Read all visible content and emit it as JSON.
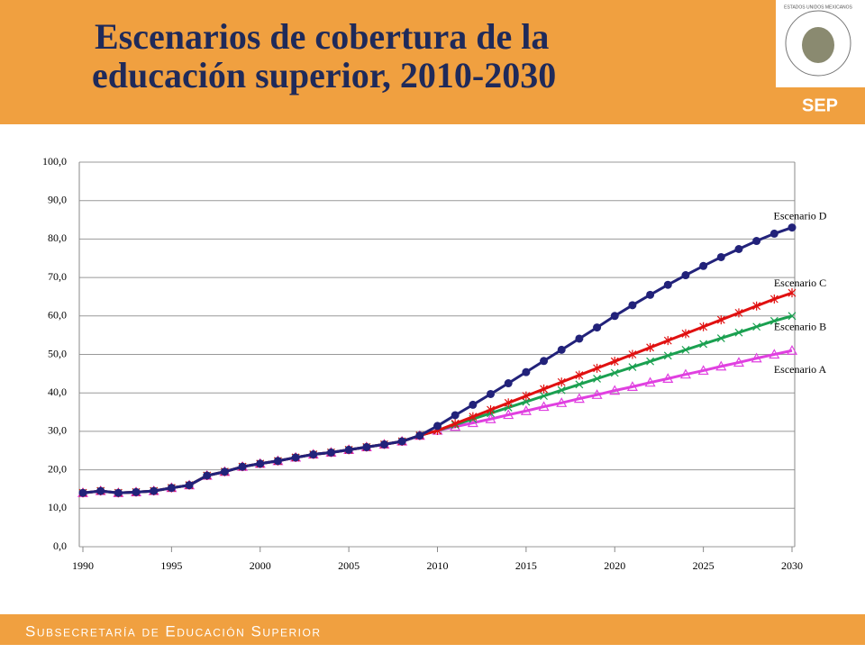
{
  "header": {
    "title": [
      "Escenarios de cobertura de la",
      "educación superior, 2010-2030"
    ]
  },
  "logo": {
    "emblem_text": "ESTADOS UNIDOS MEXICANOS",
    "name": "SEP"
  },
  "footer": {
    "text": "Subsecretaría de Educación Superior"
  },
  "chart_data": {
    "type": "line",
    "x": [
      1990,
      1991,
      1992,
      1993,
      1994,
      1995,
      1996,
      1997,
      1998,
      1999,
      2000,
      2001,
      2002,
      2003,
      2004,
      2005,
      2006,
      2007,
      2008,
      2009,
      2010,
      2011,
      2012,
      2013,
      2014,
      2015,
      2016,
      2017,
      2018,
      2019,
      2020,
      2021,
      2022,
      2023,
      2024,
      2025,
      2026,
      2027,
      2028,
      2029,
      2030
    ],
    "xlim": [
      1990,
      2030
    ],
    "xticks": [
      1990,
      1995,
      2000,
      2005,
      2010,
      2015,
      2020,
      2025,
      2030
    ],
    "ylim": [
      0,
      100
    ],
    "yticks": [
      {
        "value": 0,
        "label": "0,0"
      },
      {
        "value": 10,
        "label": "10,0"
      },
      {
        "value": 20,
        "label": "20,0"
      },
      {
        "value": 30,
        "label": "30,0"
      },
      {
        "value": 40,
        "label": "40,0"
      },
      {
        "value": 50,
        "label": "50,0"
      },
      {
        "value": 60,
        "label": "60,0"
      },
      {
        "value": 70,
        "label": "70,0"
      },
      {
        "value": 80,
        "label": "80,0"
      },
      {
        "value": 90,
        "label": "90,0"
      },
      {
        "value": 100,
        "label": "100,0"
      }
    ],
    "grid": true,
    "series": [
      {
        "name": "Escenario A",
        "color": "#e040e0",
        "marker": "triangle",
        "values": [
          14.0,
          14.5,
          14.0,
          14.2,
          14.5,
          15.3,
          16.0,
          18.5,
          19.5,
          20.8,
          21.6,
          22.3,
          23.2,
          24.0,
          24.5,
          25.2,
          25.9,
          26.6,
          27.4,
          28.9,
          30.2,
          31.2,
          32.2,
          33.2,
          34.3,
          35.3,
          36.4,
          37.4,
          38.5,
          39.5,
          40.6,
          41.6,
          42.7,
          43.7,
          44.8,
          45.8,
          46.9,
          47.9,
          49.0,
          50.0,
          51.0
        ]
      },
      {
        "name": "Escenario B",
        "color": "#1aa050",
        "marker": "x",
        "values": [
          14.0,
          14.5,
          14.0,
          14.2,
          14.5,
          15.3,
          16.0,
          18.5,
          19.5,
          20.8,
          21.6,
          22.3,
          23.2,
          24.0,
          24.5,
          25.2,
          25.9,
          26.6,
          27.4,
          28.9,
          30.2,
          31.7,
          33.2,
          34.7,
          36.2,
          37.7,
          39.2,
          40.7,
          42.2,
          43.7,
          45.2,
          46.7,
          48.2,
          49.7,
          51.2,
          52.7,
          54.2,
          55.7,
          57.2,
          58.7,
          60.0
        ]
      },
      {
        "name": "Escenario C",
        "color": "#e01010",
        "marker": "star",
        "values": [
          14.0,
          14.5,
          14.0,
          14.2,
          14.5,
          15.3,
          16.0,
          18.5,
          19.5,
          20.8,
          21.6,
          22.3,
          23.2,
          24.0,
          24.5,
          25.2,
          25.9,
          26.6,
          27.4,
          28.9,
          30.2,
          32.0,
          33.8,
          35.6,
          37.4,
          39.2,
          41.0,
          42.8,
          44.6,
          46.4,
          48.2,
          50.0,
          51.8,
          53.6,
          55.4,
          57.2,
          59.0,
          60.8,
          62.6,
          64.4,
          66.0
        ]
      },
      {
        "name": "Escenario D",
        "color": "#22227a",
        "marker": "circle",
        "values": [
          14.0,
          14.5,
          14.0,
          14.2,
          14.5,
          15.3,
          16.0,
          18.5,
          19.5,
          20.8,
          21.6,
          22.3,
          23.2,
          24.0,
          24.5,
          25.2,
          25.9,
          26.6,
          27.4,
          28.9,
          31.4,
          34.2,
          36.9,
          39.7,
          42.5,
          45.4,
          48.3,
          51.2,
          54.1,
          57.0,
          60.0,
          62.8,
          65.5,
          68.1,
          70.6,
          73.0,
          75.3,
          77.4,
          79.5,
          81.4,
          83.0
        ]
      }
    ]
  }
}
